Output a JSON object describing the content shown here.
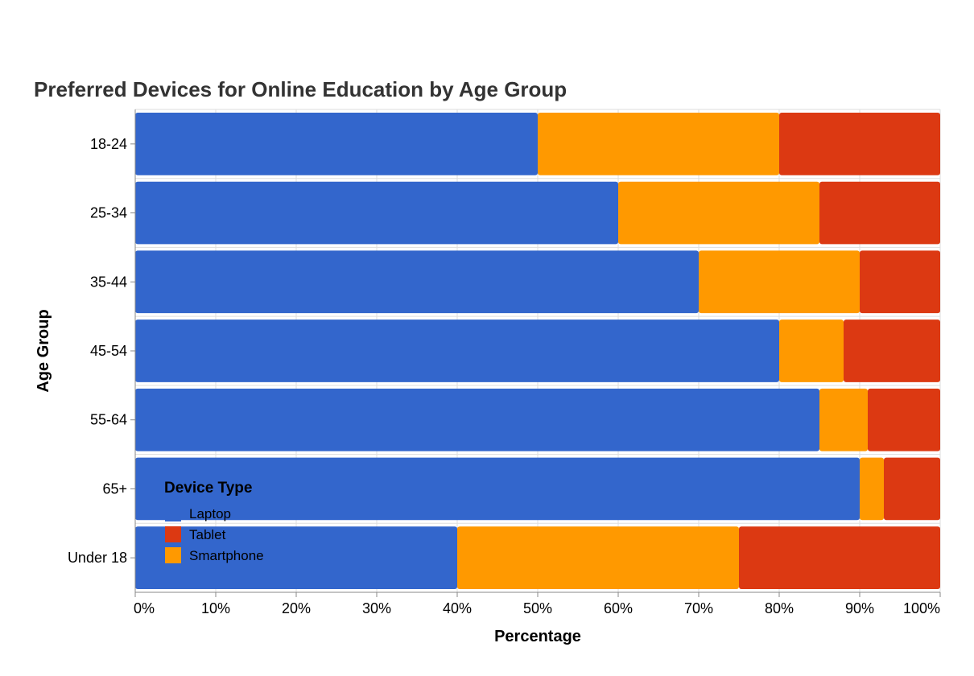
{
  "chart_data": {
    "type": "bar",
    "orientation": "horizontal",
    "stacked": true,
    "normalized": true,
    "title": "Preferred Devices for Online Education by Age Group",
    "xlabel": "Percentage",
    "ylabel": "Age Group",
    "xlim": [
      0,
      100
    ],
    "x_ticks": [
      "0%",
      "10%",
      "20%",
      "30%",
      "40%",
      "50%",
      "60%",
      "70%",
      "80%",
      "90%",
      "100%"
    ],
    "categories": [
      "18-24",
      "25-34",
      "35-44",
      "45-54",
      "55-64",
      "65+",
      "Under 18"
    ],
    "series": [
      {
        "name": "Laptop",
        "color": "#3366cc",
        "values": [
          50,
          60,
          70,
          80,
          85,
          90,
          40
        ]
      },
      {
        "name": "Smartphone",
        "color": "#ff9900",
        "values": [
          30,
          25,
          20,
          8,
          6,
          3,
          35
        ]
      },
      {
        "name": "Tablet",
        "color": "#dc3912",
        "values": [
          20,
          15,
          10,
          12,
          9,
          7,
          25
        ]
      }
    ],
    "legend": {
      "title": "Device Type",
      "position": "bottom-left",
      "entries": [
        {
          "label": "Laptop",
          "color": "#3366cc"
        },
        {
          "label": "Tablet",
          "color": "#dc3912"
        },
        {
          "label": "Smartphone",
          "color": "#ff9900"
        }
      ]
    },
    "grid": true
  }
}
